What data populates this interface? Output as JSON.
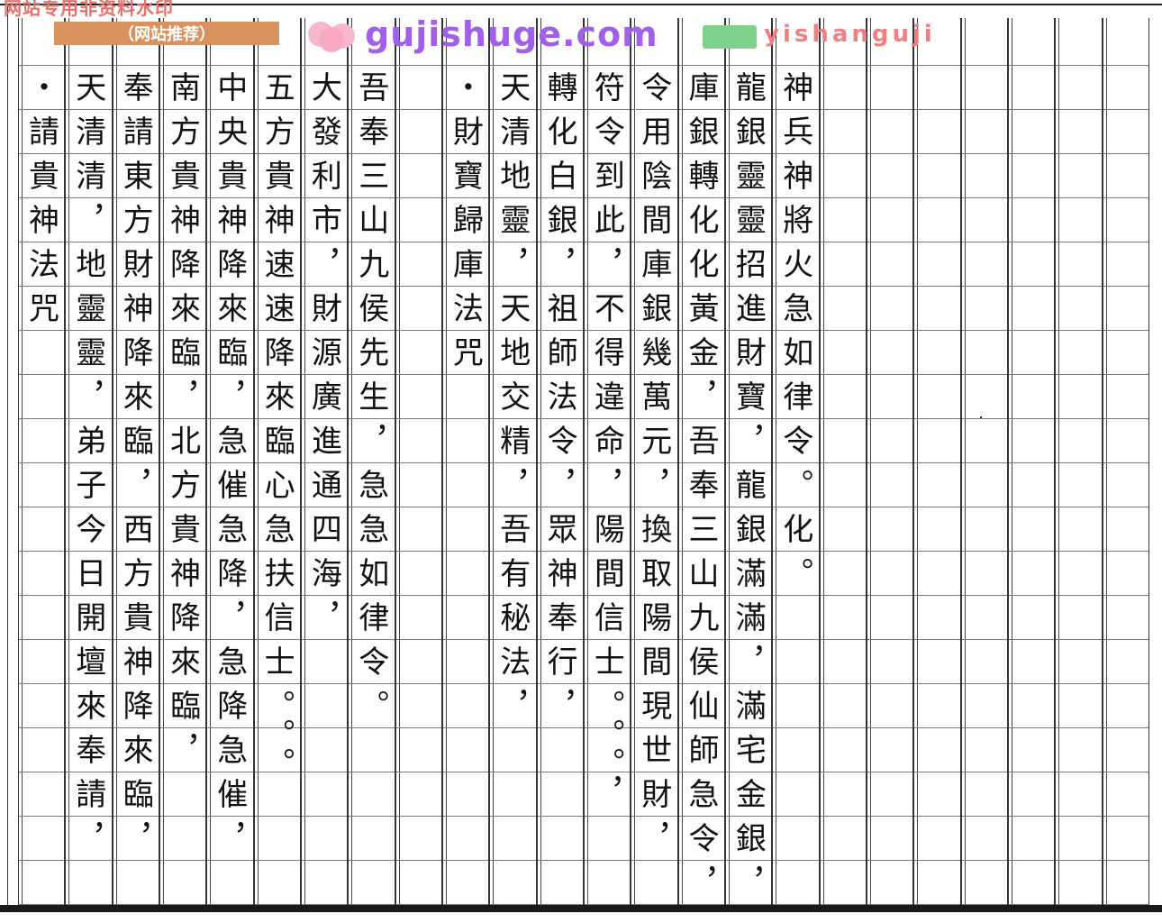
{
  "watermarks": {
    "top_notice": "网站专用非资料水印",
    "recommend_badge": "（网站推荐）",
    "site_main": "gujishuge.com",
    "site_secondary": "yishanguji"
  },
  "columns_right_to_left": [
    "",
    "",
    "",
    "",
    "",
    "",
    "",
    "神兵神將火急如律令。化。",
    "龍銀靈靈招進財寶，龍銀滿滿，滿宅金銀，",
    "庫銀轉化化黃金，吾奉三山九侯仙師急令，",
    "令用陰間庫銀幾萬元，換取陽間現世財，",
    "符令到此，不得違命，陽間信士。。。，",
    "轉化白銀，祖師法令，眾神奉行，",
    "天清地靈，天地交精，吾有秘法，",
    "・財寶歸庫法咒",
    "",
    "吾奉三山九侯先生，急急如律令。",
    "大發利市，財源廣進通四海，",
    "五方貴神速速降來臨心急扶信士。。。",
    "中央貴神降來臨，急催急降，急降急催，",
    "南方貴神降來臨，北方貴神降來臨，",
    "奉請東方財神降來臨，西方貴神降來臨，",
    "天清清，地靈靈，弟子今日開壇來奉請，",
    "・請貴神法咒"
  ]
}
